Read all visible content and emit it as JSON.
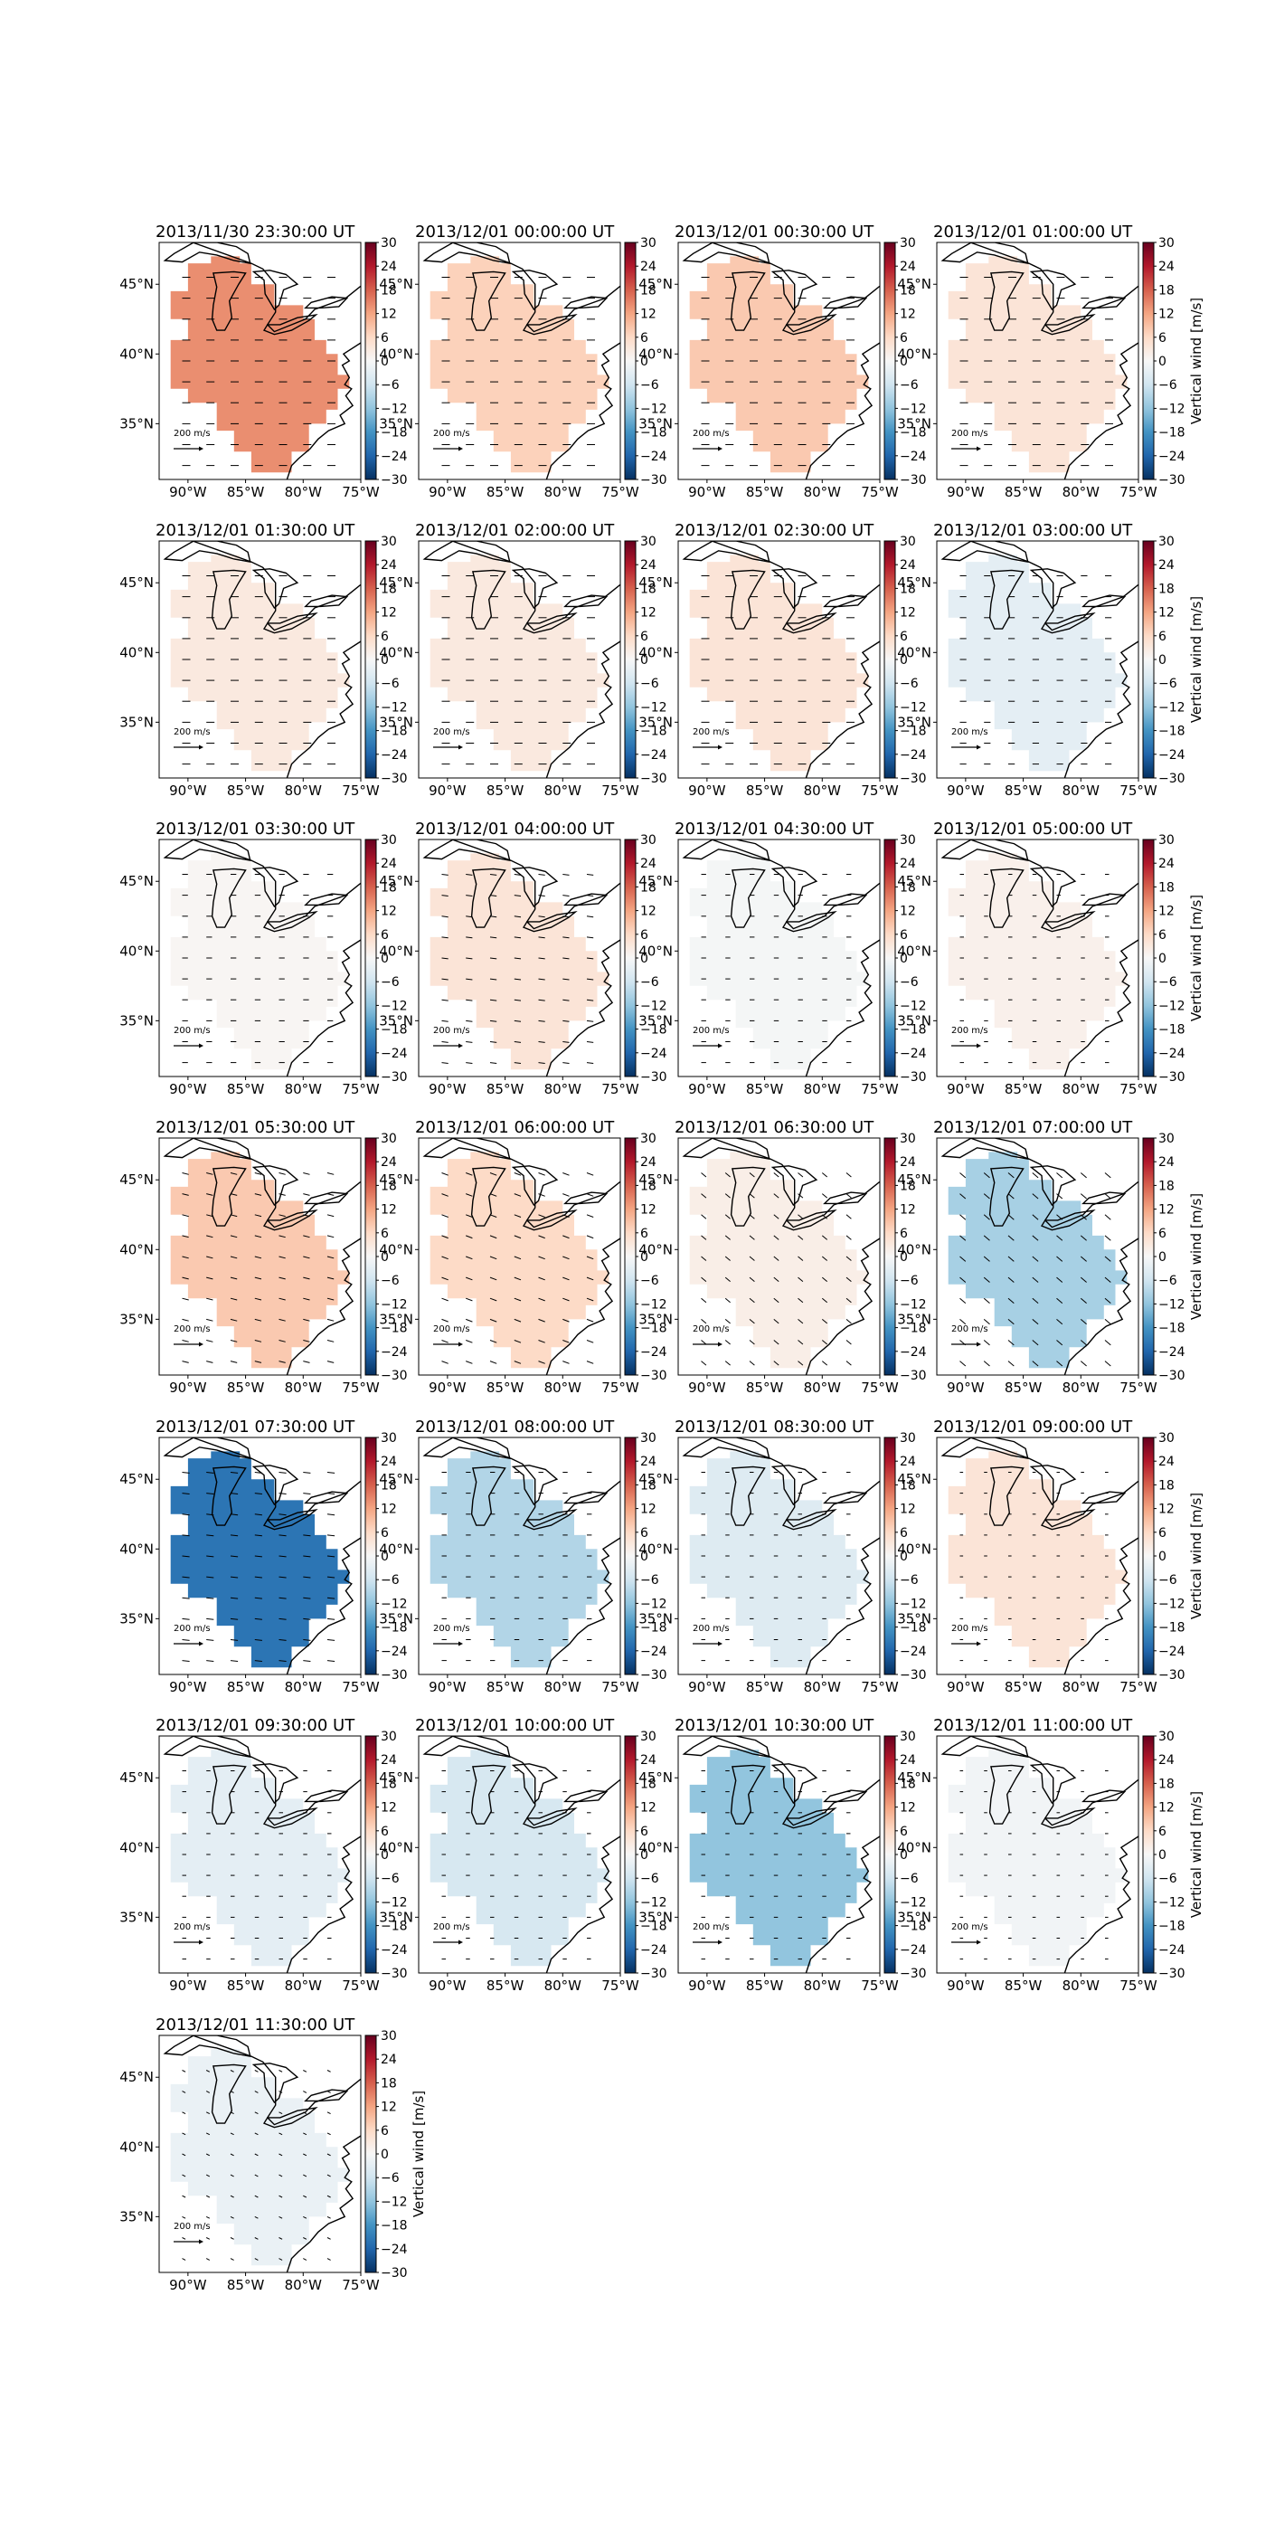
{
  "figure": {
    "colorbar": {
      "ticks": [
        30,
        24,
        18,
        12,
        6,
        0,
        -6,
        -12,
        -18,
        -24,
        -30
      ],
      "tick_labels": [
        "30",
        "24",
        "18",
        "12",
        "6",
        "0",
        "−6",
        "−12",
        "−18",
        "−24",
        "−30"
      ],
      "label": "Vertical wind [m/s]",
      "range": [
        -30,
        30
      ],
      "colors": [
        "#053061",
        "#2166ac",
        "#4393c3",
        "#92c5de",
        "#d1e5f0",
        "#f7f7f7",
        "#fddbc7",
        "#f4a582",
        "#d6604d",
        "#b2182b",
        "#67001f"
      ]
    },
    "map": {
      "lon_labels": [
        "90°W",
        "85°W",
        "80°W",
        "75°W"
      ],
      "lat_labels": [
        "45°N",
        "40°N",
        "35°N"
      ],
      "lon_range": [
        -92.5,
        -75
      ],
      "lat_range": [
        31,
        48
      ],
      "scale_label": "200 m/s"
    }
  },
  "chart_data": [
    {
      "type": "heatmap",
      "title": "2013/11/30 23:30:00 UT",
      "value": 14,
      "wind": [
        1,
        0
      ]
    },
    {
      "type": "heatmap",
      "title": "2013/12/01 00:00:00 UT",
      "value": 7,
      "wind": [
        1,
        0
      ]
    },
    {
      "type": "heatmap",
      "title": "2013/12/01 00:30:00 UT",
      "value": 8,
      "wind": [
        1,
        0
      ]
    },
    {
      "type": "heatmap",
      "title": "2013/12/01 01:00:00 UT",
      "value": 4,
      "wind": [
        1,
        0
      ]
    },
    {
      "type": "heatmap",
      "title": "2013/12/01 01:30:00 UT",
      "value": 3,
      "wind": [
        1,
        0
      ]
    },
    {
      "type": "heatmap",
      "title": "2013/12/01 02:00:00 UT",
      "value": 3,
      "wind": [
        1,
        0
      ]
    },
    {
      "type": "heatmap",
      "title": "2013/12/01 02:30:00 UT",
      "value": 4,
      "wind": [
        1,
        0
      ]
    },
    {
      "type": "heatmap",
      "title": "2013/12/01 03:00:00 UT",
      "value": -3,
      "wind": [
        0.8,
        0
      ]
    },
    {
      "type": "heatmap",
      "title": "2013/12/01 03:30:00 UT",
      "value": 0.5,
      "wind": [
        0.7,
        0
      ]
    },
    {
      "type": "heatmap",
      "title": "2013/12/01 04:00:00 UT",
      "value": 4,
      "wind": [
        0.8,
        0.1
      ]
    },
    {
      "type": "heatmap",
      "title": "2013/12/01 04:30:00 UT",
      "value": -0.5,
      "wind": [
        0.6,
        0
      ]
    },
    {
      "type": "heatmap",
      "title": "2013/12/01 05:00:00 UT",
      "value": 1.5,
      "wind": [
        0.5,
        0
      ]
    },
    {
      "type": "heatmap",
      "title": "2013/12/01 05:30:00 UT",
      "value": 8,
      "wind": [
        0.8,
        0.2
      ]
    },
    {
      "type": "heatmap",
      "title": "2013/12/01 06:00:00 UT",
      "value": 6,
      "wind": [
        0.8,
        0.3
      ]
    },
    {
      "type": "heatmap",
      "title": "2013/12/01 06:30:00 UT",
      "value": 2,
      "wind": [
        0.6,
        0.5
      ]
    },
    {
      "type": "heatmap",
      "title": "2013/12/01 07:00:00 UT",
      "value": -10,
      "wind": [
        0.7,
        0.6
      ]
    },
    {
      "type": "heatmap",
      "title": "2013/12/01 07:30:00 UT",
      "value": -22,
      "wind": [
        0.9,
        0.1
      ]
    },
    {
      "type": "heatmap",
      "title": "2013/12/01 08:00:00 UT",
      "value": -9,
      "wind": [
        0.6,
        0
      ]
    },
    {
      "type": "heatmap",
      "title": "2013/12/01 08:30:00 UT",
      "value": -4,
      "wind": [
        0.5,
        0
      ]
    },
    {
      "type": "heatmap",
      "title": "2013/12/01 09:00:00 UT",
      "value": 4,
      "wind": [
        0.4,
        0
      ]
    },
    {
      "type": "heatmap",
      "title": "2013/12/01 09:30:00 UT",
      "value": -3,
      "wind": [
        0.5,
        0
      ]
    },
    {
      "type": "heatmap",
      "title": "2013/12/01 10:00:00 UT",
      "value": -5,
      "wind": [
        0.5,
        0
      ]
    },
    {
      "type": "heatmap",
      "title": "2013/12/01 10:30:00 UT",
      "value": -12,
      "wind": [
        0.5,
        0
      ]
    },
    {
      "type": "heatmap",
      "title": "2013/12/01 11:00:00 UT",
      "value": -1,
      "wind": [
        0.4,
        0
      ]
    },
    {
      "type": "heatmap",
      "title": "2013/12/01 11:30:00 UT",
      "value": -2,
      "wind": [
        0.4,
        0.2
      ]
    }
  ]
}
